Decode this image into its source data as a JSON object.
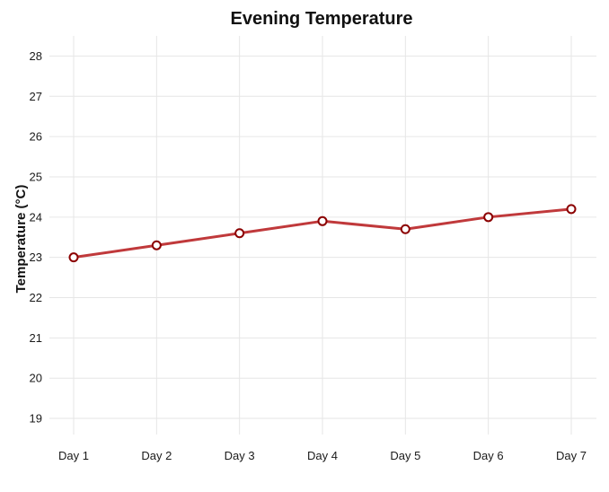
{
  "chart_data": {
    "type": "line",
    "title": "Evening Temperature",
    "xlabel": "",
    "ylabel": "Temperature (°C)",
    "categories": [
      "Day 1",
      "Day 2",
      "Day 3",
      "Day 4",
      "Day 5",
      "Day 6",
      "Day 7"
    ],
    "series": [
      {
        "values": [
          23.0,
          23.3,
          23.6,
          23.9,
          23.7,
          24.0,
          24.2
        ],
        "color": "#c0393b",
        "marker_fill": "#ffffff",
        "marker_stroke": "#8b0000"
      }
    ],
    "ylim": [
      18.6,
      28.5
    ],
    "yticks": [
      19,
      20,
      21,
      22,
      23,
      24,
      25,
      26,
      27,
      28
    ],
    "grid": true,
    "legend": "none",
    "colors": {
      "grid": "#e6e6e6",
      "text": "#1a1a1a"
    }
  }
}
